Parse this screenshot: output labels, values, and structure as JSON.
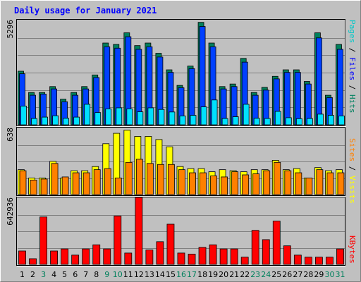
{
  "chart_data": {
    "type": "bar",
    "title": "Daily usage for January 2021",
    "days": [
      "1",
      "2",
      "3",
      "4",
      "5",
      "6",
      "7",
      "8",
      "9",
      "10",
      "11",
      "12",
      "13",
      "14",
      "15",
      "16",
      "17",
      "18",
      "19",
      "20",
      "21",
      "22",
      "23",
      "24",
      "25",
      "26",
      "27",
      "28",
      "29",
      "30",
      "31"
    ],
    "weekend_days": [
      3,
      9,
      10,
      16,
      17,
      23,
      24,
      30,
      31
    ],
    "colors": {
      "background": "#c0c0c0",
      "plot": "#c0c0c0",
      "title": "#0000ff",
      "hits": "#00805c",
      "files": "#0040ff",
      "pages": "#00e0ff",
      "visits": "#ffff00",
      "sites": "#ff8000",
      "kbytes": "#ff0000",
      "weekday_text": "#000000",
      "weekend_text": "#00805c"
    },
    "panel_top": {
      "max_label": "5296",
      "ylim": [
        0,
        5296
      ],
      "legend": [
        {
          "text": "Pages",
          "color": "#00c8c8"
        },
        {
          "text": " / ",
          "color": "#000000"
        },
        {
          "text": "Files",
          "color": "#0000ff"
        },
        {
          "text": " / ",
          "color": "#000000"
        },
        {
          "text": "Hits",
          "color": "#008060"
        }
      ],
      "series": [
        {
          "name": "Hits",
          "values": [
            2720,
            1640,
            1640,
            1940,
            1300,
            1640,
            1940,
            2530,
            4150,
            4080,
            4670,
            4020,
            4150,
            3630,
            2790,
            2000,
            2980,
            5200,
            4150,
            1940,
            2070,
            3370,
            1640,
            1900,
            2460,
            2790,
            2790,
            2200,
            4670,
            1500,
            4080
          ]
        },
        {
          "name": "Files",
          "values": [
            2590,
            1500,
            1560,
            1820,
            1170,
            1500,
            1820,
            2400,
            3960,
            3890,
            4470,
            3830,
            3960,
            3440,
            2660,
            1880,
            2850,
            4990,
            3960,
            1820,
            1940,
            3180,
            1500,
            1760,
            2330,
            2660,
            2660,
            2070,
            4410,
            1380,
            3830
          ]
        },
        {
          "name": "Pages",
          "values": [
            950,
            320,
            390,
            460,
            330,
            390,
            1040,
            620,
            810,
            860,
            810,
            660,
            860,
            780,
            650,
            450,
            480,
            910,
            1260,
            320,
            410,
            1040,
            330,
            320,
            680,
            360,
            310,
            320,
            540,
            480,
            450
          ]
        }
      ]
    },
    "panel_middle": {
      "max_label": "638",
      "ylim": [
        0,
        638
      ],
      "legend": [
        {
          "text": "Sites",
          "color": "#ff8000"
        },
        {
          "text": " / ",
          "color": "#000000"
        },
        {
          "text": "Visits",
          "color": "#ffff00"
        }
      ],
      "series": [
        {
          "name": "Visits",
          "values": [
            240,
            160,
            160,
            320,
            160,
            230,
            230,
            270,
            490,
            590,
            620,
            560,
            560,
            530,
            460,
            270,
            250,
            250,
            220,
            240,
            230,
            220,
            240,
            240,
            330,
            240,
            250,
            160,
            260,
            230,
            240
          ]
        },
        {
          "name": "Sites",
          "values": [
            230,
            140,
            150,
            300,
            170,
            210,
            210,
            240,
            250,
            160,
            310,
            340,
            300,
            290,
            290,
            240,
            210,
            210,
            180,
            170,
            220,
            190,
            200,
            230,
            310,
            230,
            210,
            160,
            240,
            210,
            210
          ]
        }
      ]
    },
    "panel_bottom": {
      "max_label": "642936",
      "ylim": [
        0,
        642936
      ],
      "legend": [
        {
          "text": "KBytes",
          "color": "#ff0000"
        }
      ],
      "series": [
        {
          "name": "KBytes",
          "values": [
            130000,
            55000,
            460000,
            130000,
            150000,
            90000,
            150000,
            190000,
            150000,
            470000,
            110000,
            650000,
            140000,
            220000,
            390000,
            110000,
            100000,
            165000,
            190000,
            150000,
            150000,
            70000,
            330000,
            240000,
            420000,
            180000,
            90000,
            70000,
            70000,
            70000,
            150000
          ]
        }
      ]
    }
  }
}
